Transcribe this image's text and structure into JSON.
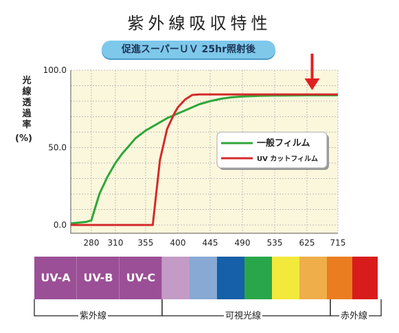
{
  "page": {
    "title": "紫外線吸収特性",
    "subtitle": "促進スーパーＵＶ 25hr照射後"
  },
  "chart_data": {
    "type": "line",
    "title": "紫外線吸収特性",
    "subtitle": "促進スーパーＵＶ 25hr照射後",
    "ylabel": "光線透過率(%)",
    "ylabel_chars": [
      "光",
      "線",
      "透",
      "過",
      "率"
    ],
    "ylabel_unit": "(%)",
    "xlabel": "",
    "x_ticks": [
      280,
      310,
      355,
      400,
      445,
      490,
      535,
      625,
      715
    ],
    "y_ticks": [
      {
        "value": 0,
        "label": "0.0"
      },
      {
        "value": 50,
        "label": "50.0"
      },
      {
        "value": 100,
        "label": "100.0"
      }
    ],
    "ylim": [
      0,
      100
    ],
    "grid": true,
    "background": "#fbf7dc",
    "legend_position": "right",
    "series": [
      {
        "name": "一般フィルム",
        "color": "#2fa63a",
        "x": [
          260,
          275,
          280,
          290,
          300,
          310,
          320,
          330,
          340,
          355,
          370,
          385,
          400,
          415,
          430,
          445,
          460,
          475,
          490,
          505,
          520,
          535,
          580,
          625,
          670,
          715
        ],
        "y": [
          1,
          2,
          3,
          20,
          31,
          40,
          46,
          51,
          56,
          61,
          65,
          69,
          72,
          75,
          78,
          80,
          81.5,
          82.5,
          83,
          83.3,
          83.5,
          83.6,
          83.7,
          83.8,
          83.8,
          83.8
        ]
      },
      {
        "name": "UV カットフィルム",
        "color": "#d42a2a",
        "x": [
          260,
          280,
          310,
          355,
          365,
          375,
          385,
          395,
          400,
          410,
          420,
          430,
          445,
          490,
          535,
          625,
          715
        ],
        "y": [
          0,
          0,
          0,
          0,
          0,
          42,
          62,
          72,
          76,
          81,
          84,
          84.3,
          84.3,
          84.3,
          84.3,
          84.3,
          84.3
        ]
      }
    ],
    "annotation": {
      "type": "arrow",
      "x": 640,
      "color": "#e02020"
    }
  },
  "spectrum": {
    "uv_bands": [
      {
        "label": "UV-A",
        "color": "#9b4f96"
      },
      {
        "label": "UV-B",
        "color": "#9b4f96"
      },
      {
        "label": "UV-C",
        "color": "#9b4f96"
      }
    ],
    "visible_colors": [
      "#c39bc6",
      "#87a9d3",
      "#1560a8",
      "#2aa64a",
      "#f3e93a",
      "#efae4a"
    ],
    "ir_colors": [
      "#ea7d1f",
      "#d81c1c"
    ],
    "range_labels": {
      "uv": "紫外線",
      "visible": "可視光線",
      "ir": "赤外線"
    }
  }
}
